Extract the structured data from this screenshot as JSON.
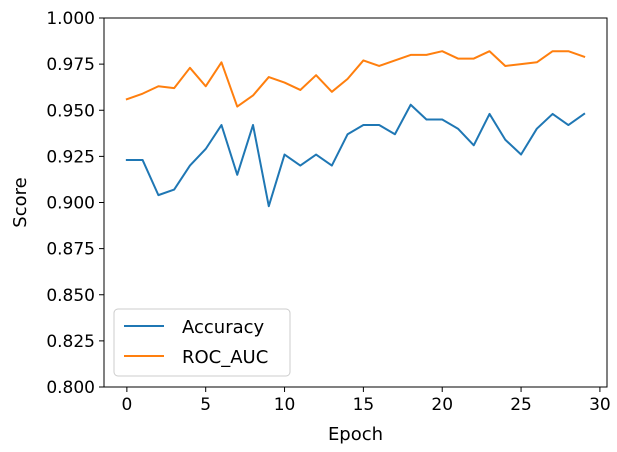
{
  "chart_data": {
    "type": "line",
    "title": "",
    "xlabel": "Epoch",
    "ylabel": "Score",
    "xlim": [
      -1.45,
      30.45
    ],
    "ylim": [
      0.8,
      1.0
    ],
    "grid": false,
    "legend_position": "lower-left",
    "x_ticks": [
      0,
      5,
      10,
      15,
      20,
      25,
      30
    ],
    "y_ticks": [
      0.8,
      0.825,
      0.85,
      0.875,
      0.9,
      0.925,
      0.95,
      0.975,
      1.0
    ],
    "x_tick_labels": [
      "0",
      "5",
      "10",
      "15",
      "20",
      "25",
      "30"
    ],
    "y_tick_labels": [
      "0.800",
      "0.825",
      "0.850",
      "0.875",
      "0.900",
      "0.925",
      "0.950",
      "0.975",
      "1.000"
    ],
    "x": [
      0,
      1,
      2,
      3,
      4,
      5,
      6,
      7,
      8,
      9,
      10,
      11,
      12,
      13,
      14,
      15,
      16,
      17,
      18,
      19,
      20,
      21,
      22,
      23,
      24,
      25,
      26,
      27,
      28,
      29
    ],
    "series": [
      {
        "name": "Accuracy",
        "color": "#1f77b4",
        "values": [
          0.923,
          0.923,
          0.904,
          0.907,
          0.92,
          0.929,
          0.942,
          0.915,
          0.942,
          0.898,
          0.926,
          0.92,
          0.926,
          0.92,
          0.937,
          0.942,
          0.942,
          0.937,
          0.953,
          0.945,
          0.945,
          0.94,
          0.931,
          0.948,
          0.934,
          0.926,
          0.94,
          0.948,
          0.942,
          0.948
        ]
      },
      {
        "name": "ROC_AUC",
        "color": "#ff7f0e",
        "values": [
          0.956,
          0.959,
          0.963,
          0.962,
          0.973,
          0.963,
          0.976,
          0.952,
          0.958,
          0.968,
          0.965,
          0.961,
          0.969,
          0.96,
          0.967,
          0.977,
          0.974,
          0.977,
          0.98,
          0.98,
          0.982,
          0.978,
          0.978,
          0.982,
          0.974,
          0.975,
          0.976,
          0.982,
          0.982,
          0.979
        ]
      }
    ]
  }
}
